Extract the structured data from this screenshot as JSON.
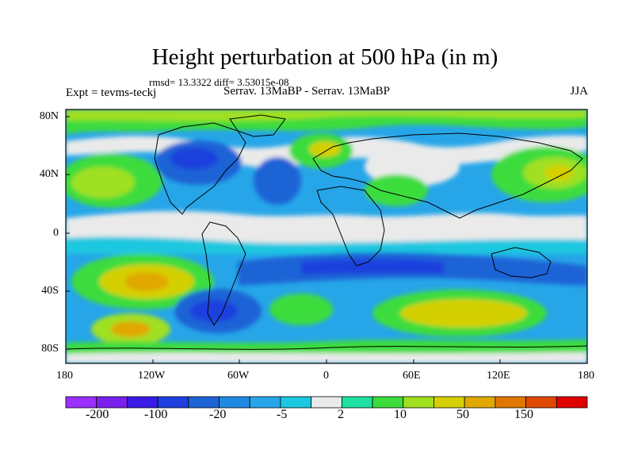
{
  "title": "Height perturbation at 500 hPa (in m)",
  "stats": "rmsd= 13.3322 diff= 3.53015e-08",
  "experiment": "Expt = tevms-teckj",
  "comparison": "Serrav.   13MaBP - Serrav.   13MaBP",
  "season": "JJA",
  "lat_ticks": [
    "80N",
    "40N",
    "0",
    "40S",
    "80S"
  ],
  "lon_ticks": [
    "180",
    "120W",
    "60W",
    "0",
    "60E",
    "120E",
    "180"
  ],
  "colorbar": {
    "colors": [
      "#9b30ff",
      "#7a1fee",
      "#3a1be6",
      "#1e3fde",
      "#1e64d6",
      "#2088e0",
      "#26a6e8",
      "#1cc8e0",
      "#eaeaea",
      "#1ee0a0",
      "#3cdc3c",
      "#a0e020",
      "#d4d000",
      "#e0a800",
      "#e07800",
      "#e04800",
      "#e00000"
    ],
    "labels": [
      "-200",
      "-100",
      "-20",
      "-5",
      "2",
      "10",
      "50",
      "150"
    ]
  },
  "field_colors": {
    "background": "#26a6e8",
    "neutral": "#eaeaea",
    "pos_weak": "#1ee0a0",
    "pos_mid": "#3cdc3c",
    "pos_strong": "#a0e020",
    "pos_high": "#d4d000",
    "pos_max": "#e0a800",
    "neg_mid": "#1e64d6",
    "neg_strong": "#1e3fde"
  }
}
